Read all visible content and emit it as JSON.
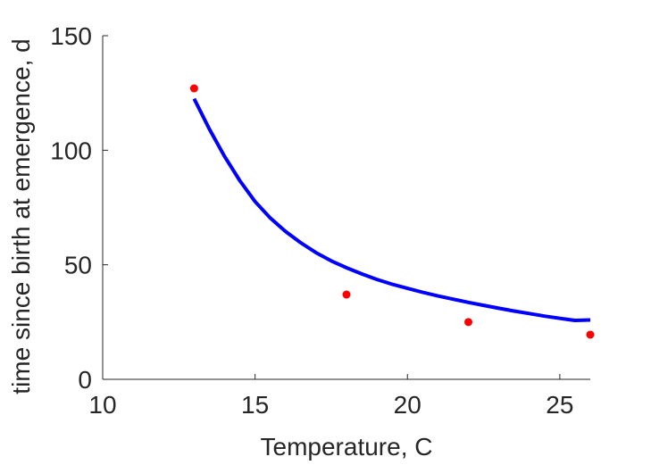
{
  "chart_data": {
    "type": "scatter",
    "title": "",
    "xlabel": "Temperature, C",
    "ylabel": "time since birth at emergence, d",
    "xlim": [
      10,
      26
    ],
    "ylim": [
      0,
      150
    ],
    "xticks": [
      "10",
      "15",
      "20",
      "25"
    ],
    "yticks": [
      "0",
      "50",
      "100",
      "150"
    ],
    "grid": false,
    "box": false,
    "series": [
      {
        "kind": "points",
        "color": "#ff0000",
        "x": [
          13,
          18,
          22,
          26
        ],
        "y": [
          127,
          37,
          25,
          19.5
        ]
      },
      {
        "kind": "line",
        "color": "#0000ff",
        "x": [
          13,
          13.5,
          14,
          14.5,
          15,
          15.5,
          16,
          16.5,
          17,
          17.5,
          18,
          18.5,
          19,
          19.5,
          20,
          20.5,
          21,
          21.5,
          22,
          22.5,
          23,
          23.5,
          24,
          24.5,
          25,
          25.5,
          26
        ],
        "y": [
          122.5,
          109.3,
          97.3,
          86.7,
          77.6,
          70.4,
          64.5,
          59.6,
          55.3,
          51.7,
          48.7,
          46.0,
          43.6,
          41.5,
          39.7,
          38.0,
          36.4,
          35.0,
          33.6,
          32.3,
          31.0,
          29.8,
          28.7,
          27.6,
          26.6,
          25.7,
          25.9
        ]
      }
    ]
  }
}
